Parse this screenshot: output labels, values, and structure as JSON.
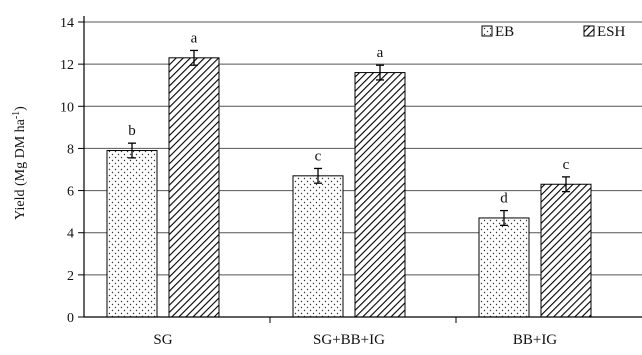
{
  "chart_data": {
    "type": "bar",
    "title": "",
    "xlabel": "",
    "ylabel": "Yield (Mg DM ha",
    "ylabel_sup": "-1",
    "ylabel_close": ")",
    "ylim": [
      0,
      14
    ],
    "yticks": [
      0,
      2,
      4,
      6,
      8,
      10,
      12,
      14
    ],
    "grid": "horizontal",
    "legend_position": "top-right",
    "categories": [
      "SG",
      "SG+BB+IG",
      "BB+IG"
    ],
    "series": [
      {
        "name": "EB",
        "pattern": "dots",
        "values": [
          7.9,
          6.7,
          4.7
        ],
        "errors": [
          0.35,
          0.35,
          0.35
        ],
        "labels": [
          "b",
          "c",
          "d"
        ]
      },
      {
        "name": "ESH",
        "pattern": "diagonal-hatch",
        "values": [
          12.3,
          11.6,
          6.3
        ],
        "errors": [
          0.35,
          0.35,
          0.35
        ],
        "labels": [
          "a",
          "a",
          "c"
        ]
      }
    ],
    "colors": {
      "bar_stroke": "#000000",
      "bar_fill": "#ffffff",
      "grid": "#555555"
    }
  }
}
